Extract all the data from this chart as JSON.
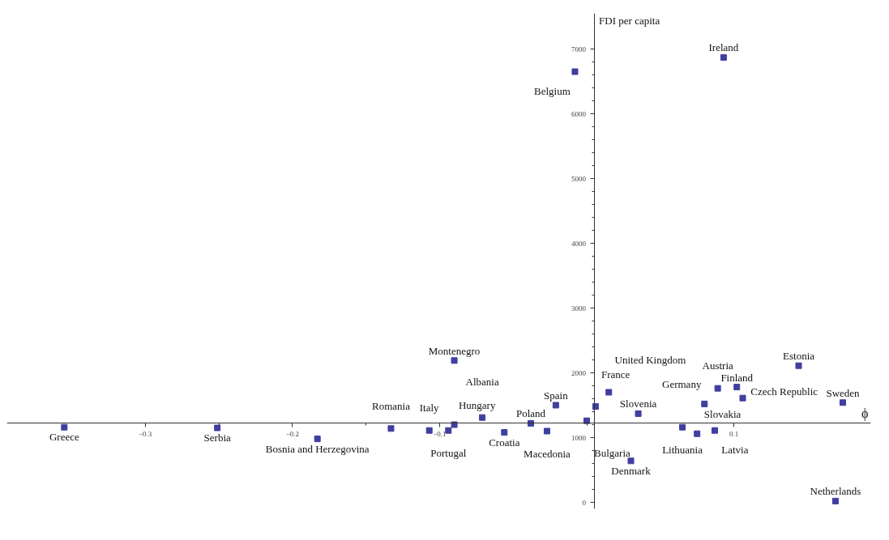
{
  "chart_data": {
    "type": "scatter",
    "xlabel": "ϕ",
    "ylabel": "FDI per capita",
    "color": "#3f3f9f",
    "marker": "square",
    "grid": false,
    "xlim": [
      -0.394,
      0.193
    ],
    "ylim": [
      -100,
      7550
    ],
    "xticks": [
      -0.3,
      -0.2,
      -0.1,
      0.1
    ],
    "yticks": [
      0,
      1000,
      2000,
      3000,
      4000,
      5000,
      6000,
      7000
    ],
    "x": [
      -0.355,
      -0.251,
      -0.183,
      -0.133,
      -0.107,
      -0.094,
      -0.09,
      -0.071,
      -0.056,
      -0.038,
      -0.027,
      -0.021,
      0.0,
      0.006,
      0.015,
      0.035,
      0.065,
      0.075,
      0.087,
      0.08,
      0.089,
      0.102,
      0.106,
      0.144,
      0.174,
      -0.09,
      -0.008,
      0.093,
      0.03,
      0.169
    ],
    "values": [
      1160,
      1150,
      980,
      1140,
      1110,
      1110,
      1200,
      1310,
      1080,
      1220,
      1100,
      1500,
      1260,
      1480,
      1700,
      1370,
      1160,
      1060,
      1110,
      1520,
      1760,
      1780,
      1610,
      2110,
      1540,
      2190,
      6650,
      6870,
      640,
      20
    ],
    "annotations": [
      {
        "text": "Greece",
        "x": -0.355,
        "y": 1160
      },
      {
        "text": "Serbia",
        "x": -0.251,
        "y": 1150
      },
      {
        "text": "Bosnia and Herzegovina",
        "x": -0.183,
        "y": 980
      },
      {
        "text": "Romania",
        "x": -0.133,
        "y": 1140
      },
      {
        "text": "Italy",
        "x": -0.107,
        "y": 1110
      },
      {
        "text": "Portugal",
        "x": -0.094,
        "y": 1110
      },
      {
        "text": "Hungary",
        "x": -0.09,
        "y": 1200
      },
      {
        "text": "Albania",
        "x": -0.071,
        "y": 1310
      },
      {
        "text": "Croatia",
        "x": -0.056,
        "y": 1080
      },
      {
        "text": "Poland",
        "x": -0.038,
        "y": 1220
      },
      {
        "text": "Macedonia",
        "x": -0.027,
        "y": 1100
      },
      {
        "text": "Spain",
        "x": -0.021,
        "y": 1500
      },
      {
        "text": "Bulgaria",
        "x": 0.0,
        "y": 1260
      },
      {
        "text": "France",
        "x": 0.006,
        "y": 1480
      },
      {
        "text": "United Kingdom",
        "x": 0.015,
        "y": 1700
      },
      {
        "text": "Slovenia",
        "x": 0.035,
        "y": 1370
      },
      {
        "text": "Lithuania",
        "x": 0.065,
        "y": 1160
      },
      {
        "text": "Slovakia",
        "x": 0.075,
        "y": 1060
      },
      {
        "text": "Latvia",
        "x": 0.087,
        "y": 1110
      },
      {
        "text": "Germany",
        "x": 0.08,
        "y": 1520
      },
      {
        "text": "Austria",
        "x": 0.089,
        "y": 1760
      },
      {
        "text": "Finland",
        "x": 0.102,
        "y": 1780
      },
      {
        "text": "Czech Republic",
        "x": 0.106,
        "y": 1610
      },
      {
        "text": "Estonia",
        "x": 0.144,
        "y": 2110
      },
      {
        "text": "Sweden",
        "x": 0.174,
        "y": 1540
      },
      {
        "text": "Montenegro",
        "x": -0.09,
        "y": 2190
      },
      {
        "text": "Belgium",
        "x": -0.008,
        "y": 6650
      },
      {
        "text": "Ireland",
        "x": 0.093,
        "y": 6870
      },
      {
        "text": "Denmark",
        "x": 0.03,
        "y": 640
      },
      {
        "text": "Netherlands",
        "x": 0.169,
        "y": 20
      }
    ]
  }
}
